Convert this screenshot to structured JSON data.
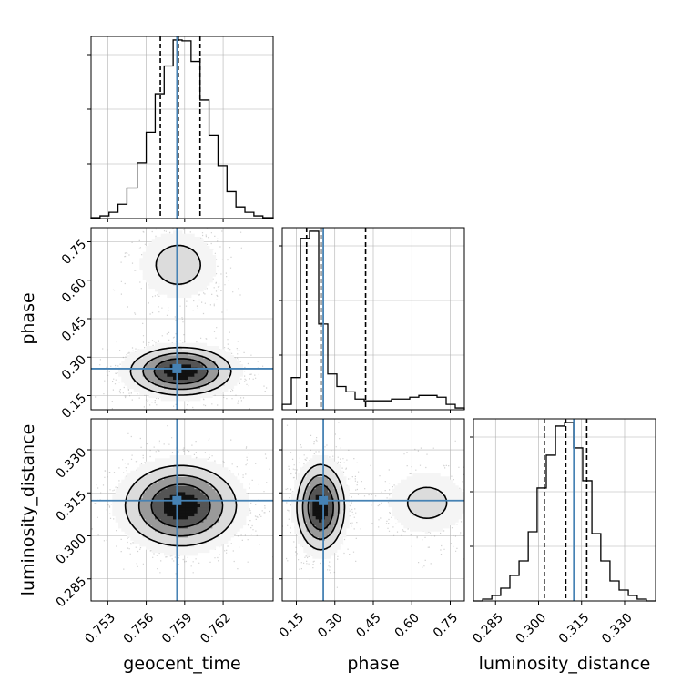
{
  "chart_data": {
    "type": "corner",
    "parameters": [
      "geocent_time",
      "phase",
      "luminosity_distance"
    ],
    "truths": {
      "geocent_time": 0.7584,
      "phase": 0.255,
      "luminosity_distance": 0.3123
    },
    "colors": {
      "truth": "#4682b4",
      "hist": "#000000",
      "grid": "#b0b0b0",
      "points": "#9a9a9a"
    },
    "axes": {
      "geocent_time": {
        "label": "geocent_time",
        "range": [
          0.7517,
          0.7659
        ],
        "ticks": [
          0.753,
          0.756,
          0.759,
          0.762
        ],
        "tick_labels": [
          "0.753",
          "0.756",
          "0.759",
          "0.762"
        ]
      },
      "phase": {
        "label": "phase",
        "range": [
          0.095,
          0.805
        ],
        "ticks": [
          0.15,
          0.3,
          0.45,
          0.6,
          0.75
        ],
        "tick_labels": [
          "0.15",
          "0.30",
          "0.45",
          "0.60",
          "0.75"
        ]
      },
      "luminosity_distance": {
        "label": "luminosity_distance",
        "range": [
          0.2773,
          0.3408
        ],
        "ticks": [
          0.285,
          0.3,
          0.315,
          0.33
        ],
        "tick_labels": [
          "0.285",
          "0.300",
          "0.315",
          "0.330"
        ]
      }
    },
    "histograms": {
      "geocent_time": {
        "bin_edges": [
          0.7517,
          0.7524,
          0.7531,
          0.7538,
          0.7545,
          0.7553,
          0.756,
          0.7567,
          0.7574,
          0.7581,
          0.7588,
          0.7595,
          0.7602,
          0.7609,
          0.7616,
          0.7623,
          0.763,
          0.7637,
          0.7644,
          0.7651,
          0.7659
        ],
        "counts": [
          1,
          3,
          7,
          16,
          34,
          62,
          96,
          139,
          170,
          199,
          198,
          175,
          132,
          93,
          59,
          30,
          13,
          7,
          3,
          1
        ],
        "quantiles": [
          0.7571,
          0.7585,
          0.7602
        ]
      },
      "phase": {
        "bin_edges": [
          0.095,
          0.1305,
          0.166,
          0.2015,
          0.237,
          0.2725,
          0.308,
          0.3435,
          0.379,
          0.4145,
          0.45,
          0.4855,
          0.521,
          0.5565,
          0.592,
          0.6275,
          0.663,
          0.6985,
          0.734,
          0.7695,
          0.805
        ],
        "counts": [
          3,
          18,
          96,
          100,
          48,
          20,
          13,
          10,
          6,
          5,
          5,
          5,
          6,
          6,
          7,
          8,
          8,
          7,
          3,
          1
        ],
        "quantiles": [
          0.19,
          0.246,
          0.42
        ]
      },
      "luminosity_distance": {
        "bin_edges": [
          0.2773,
          0.2805,
          0.2837,
          0.2868,
          0.29,
          0.2932,
          0.2964,
          0.2995,
          0.3027,
          0.3059,
          0.3091,
          0.3122,
          0.3154,
          0.3186,
          0.3217,
          0.3249,
          0.3281,
          0.3313,
          0.3344,
          0.3376,
          0.3408
        ],
        "counts": [
          0,
          1,
          3,
          7,
          14,
          22,
          38,
          62,
          80,
          96,
          98,
          84,
          66,
          37,
          22,
          11,
          6,
          3,
          1,
          0
        ],
        "quantiles": [
          0.302,
          0.3095,
          0.3168
        ]
      }
    },
    "densities": [
      {
        "x": "geocent_time",
        "y": "phase",
        "modes": [
          {
            "cx": 0.7587,
            "cy": 0.245,
            "sx": 0.0019,
            "sy": 0.045,
            "w": 0.78
          },
          {
            "cx": 0.7585,
            "cy": 0.66,
            "sx": 0.0016,
            "sy": 0.07,
            "w": 0.22
          }
        ]
      },
      {
        "x": "geocent_time",
        "y": "luminosity_distance",
        "modes": [
          {
            "cx": 0.7587,
            "cy": 0.3105,
            "sx": 0.0021,
            "sy": 0.0068,
            "w": 1.0
          }
        ]
      },
      {
        "x": "phase",
        "y": "luminosity_distance",
        "modes": [
          {
            "cx": 0.245,
            "cy": 0.31,
            "sx": 0.045,
            "sy": 0.0072,
            "w": 0.78
          },
          {
            "cx": 0.66,
            "cy": 0.3115,
            "sx": 0.085,
            "sy": 0.006,
            "w": 0.22
          }
        ]
      }
    ]
  }
}
